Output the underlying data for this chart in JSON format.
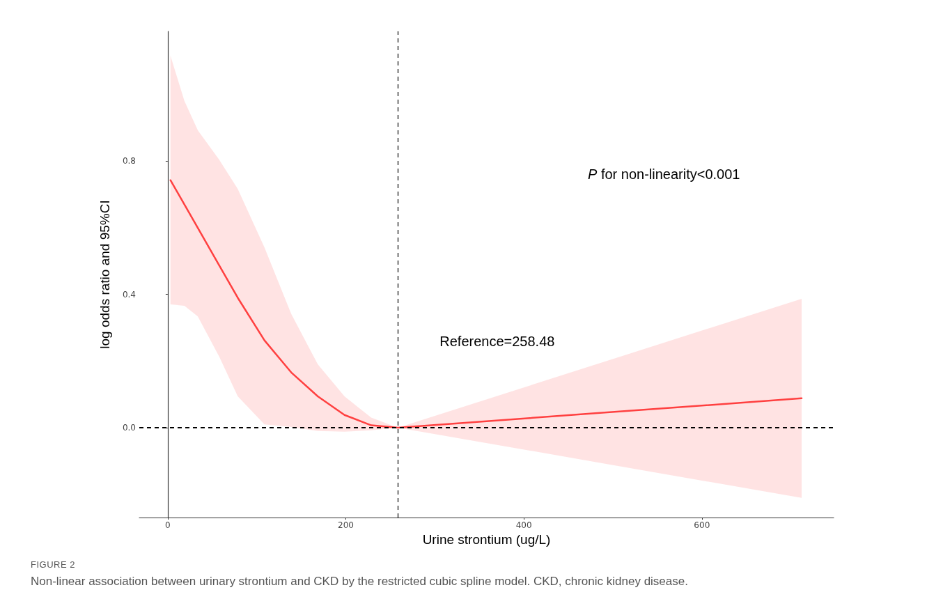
{
  "chart_data": {
    "type": "line",
    "xlabel": "Urine strontium (ug/L)",
    "ylabel": "log odds ratio and 95%CI",
    "x": [
      3,
      18.7,
      33.7,
      57.6,
      78.6,
      108.6,
      138.6,
      168.5,
      198.5,
      228.5,
      258.48,
      480,
      712
    ],
    "series": [
      {
        "color": "#ff4040",
        "values": [
          0.743,
          0.67,
          0.6,
          0.488,
          0.39,
          0.262,
          0.166,
          0.094,
          0.038,
          0.007,
          0,
          0.043,
          0.088
        ],
        "upper": [
          1.117,
          0.981,
          0.893,
          0.805,
          0.717,
          0.541,
          0.342,
          0.19,
          0.094,
          0.03,
          0,
          0.189,
          0.387
        ],
        "lower": [
          0.37,
          0.366,
          0.334,
          0.214,
          0.094,
          0.01,
          0.002,
          -0.01,
          -0.012,
          -0.008,
          0,
          -0.103,
          -0.211
        ]
      }
    ],
    "xlim": [
      -32,
      748
    ],
    "xticks": [
      0,
      200,
      400,
      600
    ],
    "ylim": [
      -0.27,
      1.19
    ],
    "yticks": [
      {
        "value": 0,
        "label": "0.0"
      },
      {
        "value": 0.4,
        "label": "0.4"
      },
      {
        "value": 0.8,
        "label": "0.8"
      }
    ],
    "ref_lines": [
      {
        "axis": "y",
        "value": 0,
        "line_style": "dashed",
        "color": "#000000"
      },
      {
        "axis": "x",
        "value": 258.48,
        "line_style": "dashed",
        "color": "#000000"
      }
    ],
    "annotations": [
      {
        "text": "Reference=258.48",
        "x": 258.48,
        "y": 0.26
      },
      "P for non-linearity<0.001",
      "FIGURE 2",
      "Non-linear association between urinary strontium and CKD by the restricted cubic spline model. CKD, chronic kidney disease."
    ],
    "grid": false,
    "marker": "none",
    "line_style": "solid"
  }
}
